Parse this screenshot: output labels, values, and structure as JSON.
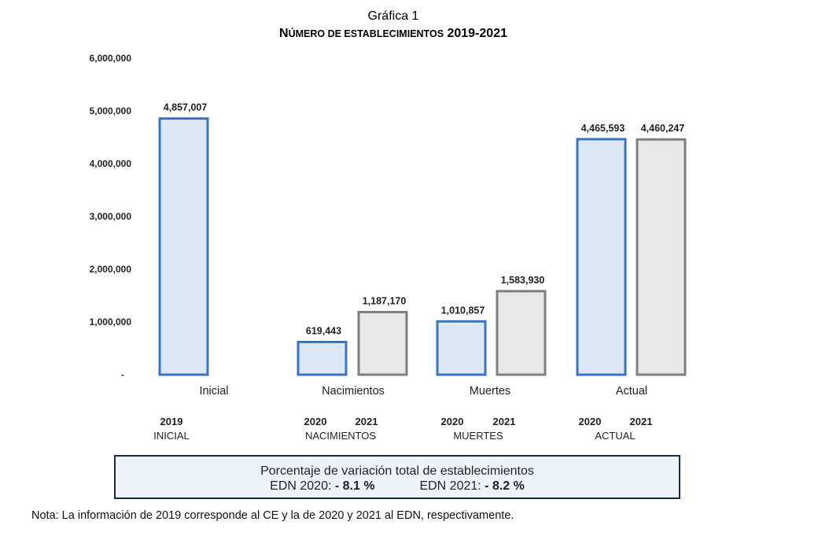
{
  "title": {
    "line1": "Gráfica 1",
    "line2_first": "N",
    "line2_small": "ÚMERO DE ESTABLECIMIENTOS",
    "line2_years": "2019-2021"
  },
  "chart_data": {
    "type": "bar",
    "title": "NÚMERO DE ESTABLECIMIENTOS 2019-2021",
    "ylim": [
      0,
      6000000
    ],
    "yticks": [
      0,
      1000000,
      2000000,
      3000000,
      4000000,
      5000000,
      6000000
    ],
    "ytick_labels": [
      "-",
      "1,000,000",
      "2,000,000",
      "3,000,000",
      "4,000,000",
      "5,000,000",
      "6,000,000"
    ],
    "grid": false,
    "bars": [
      {
        "category": "Inicial",
        "year": "2019",
        "value": 4857007,
        "label": "4,857,007",
        "style": "blue"
      },
      {
        "category": "Nacimientos",
        "year": "2020",
        "value": 619443,
        "label": "619,443",
        "style": "blue"
      },
      {
        "category": "Nacimientos",
        "year": "2021",
        "value": 1187170,
        "label": "1,187,170",
        "style": "gray"
      },
      {
        "category": "Muertes",
        "year": "2020",
        "value": 1010857,
        "label": "1,010,857",
        "style": "blue"
      },
      {
        "category": "Muertes",
        "year": "2021",
        "value": 1583930,
        "label": "1,583,930",
        "style": "gray"
      },
      {
        "category": "Actual",
        "year": "2020",
        "value": 4465593,
        "label": "4,465,593",
        "style": "blue"
      },
      {
        "category": "Actual",
        "year": "2021",
        "value": 4460247,
        "label": "4,460,247",
        "style": "gray"
      }
    ],
    "categories": [
      "Inicial",
      "Nacimientos",
      "Muertes",
      "Actual"
    ],
    "group_labels": [
      "INICIAL",
      "NACIMIENTOS",
      "MUERTES",
      "ACTUAL"
    ],
    "colors": {
      "blue_fill": "#dce9f5",
      "blue_stroke": "#3a73c4",
      "gray_fill": "#e8e8e8",
      "gray_stroke": "#7f7f7f"
    }
  },
  "summary_box": {
    "line1": "Porcentaje de variación total de establecimientos",
    "edn2020_label": "EDN 2020:",
    "edn2020_value": "- 8.1 %",
    "edn2021_label": "EDN 2021:",
    "edn2021_value": "- 8.2 %"
  },
  "note": "Nota: La información de 2019 corresponde al CE y la de 2020 y 2021 al EDN, respectivamente."
}
